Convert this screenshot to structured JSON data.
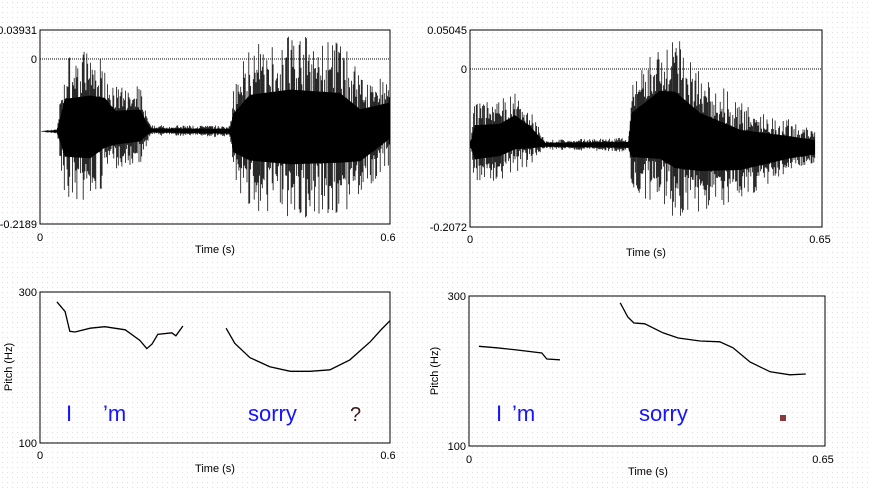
{
  "chart_data": [
    {
      "type": "line",
      "subtype": "waveform",
      "panel": "top-left",
      "xlabel": "Time (s)",
      "xlim": [
        0,
        0.6
      ],
      "ylim": [
        -0.2189,
        0.03931
      ],
      "x_ticks": [
        "0",
        "0.6"
      ],
      "y_ticks": [
        "0.03931",
        "0",
        "-0.2189"
      ],
      "envelope_t_max_min": [
        [
          0,
          -0.0955,
          -0.0955
        ],
        [
          0.029,
          -0.0916,
          -0.0995
        ],
        [
          0.043,
          0.0053,
          -0.187
        ],
        [
          0.086,
          0.0146,
          -0.194
        ],
        [
          0.111,
          -0.0013,
          -0.167
        ],
        [
          0.129,
          -0.0345,
          -0.147
        ],
        [
          0.171,
          -0.0345,
          -0.141
        ],
        [
          0.189,
          -0.0876,
          -0.101
        ],
        [
          0.326,
          -0.0876,
          -0.1035
        ],
        [
          0.331,
          -0.0345,
          -0.161
        ],
        [
          0.36,
          0.0186,
          -0.2
        ],
        [
          0.429,
          0.0345,
          -0.214
        ],
        [
          0.514,
          0.0252,
          -0.207
        ],
        [
          0.549,
          -0.0146,
          -0.187
        ],
        [
          0.6,
          -0.0212,
          -0.141
        ]
      ]
    },
    {
      "type": "line",
      "subtype": "waveform",
      "panel": "top-right",
      "xlabel": "Time (s)",
      "xlim": [
        0,
        0.65
      ],
      "ylim": [
        -0.2072,
        0.05045
      ],
      "x_ticks": [
        "0",
        "0.65"
      ],
      "y_ticks": [
        "0.05045",
        "0",
        "-0.2072"
      ],
      "envelope_t_max_min": [
        [
          0,
          -0.0997,
          -0.0997
        ],
        [
          0.009,
          -0.0407,
          -0.152
        ],
        [
          0.055,
          -0.0407,
          -0.146
        ],
        [
          0.083,
          -0.0275,
          -0.139
        ],
        [
          0.111,
          -0.0538,
          -0.126
        ],
        [
          0.138,
          -0.0931,
          -0.106
        ],
        [
          0.292,
          -0.0905,
          -0.109
        ],
        [
          0.299,
          -0.0144,
          -0.159
        ],
        [
          0.351,
          0.038,
          -0.185
        ],
        [
          0.379,
          0.0446,
          -0.205
        ],
        [
          0.425,
          -0.0013,
          -0.191
        ],
        [
          0.499,
          -0.0407,
          -0.172
        ],
        [
          0.591,
          -0.0669,
          -0.139
        ],
        [
          0.637,
          -0.08,
          -0.126
        ]
      ]
    },
    {
      "type": "line",
      "subtype": "pitch",
      "panel": "bottom-left",
      "xlabel": "Time (s)",
      "ylabel": "Pitch (Hz)",
      "xlim": [
        0,
        0.6
      ],
      "ylim": [
        100,
        300
      ],
      "x_ticks": [
        "0",
        "0.6"
      ],
      "y_ticks": [
        "300",
        "100"
      ],
      "segments": [
        {
          "t": [
            0.029,
            0.043,
            0.051,
            0.06,
            0.086,
            0.111,
            0.146,
            0.171,
            0.183,
            0.192,
            0.202,
            0.226,
            0.233,
            0.245
          ],
          "hz": [
            287,
            274,
            248,
            247,
            252,
            254,
            250,
            236,
            225,
            231,
            244,
            246,
            242,
            255
          ]
        },
        {
          "t": [
            0.319,
            0.334,
            0.36,
            0.394,
            0.429,
            0.463,
            0.497,
            0.531,
            0.566,
            0.586,
            0.6
          ],
          "hz": [
            252,
            232,
            213,
            201,
            195,
            195,
            197,
            210,
            234,
            251,
            262
          ]
        }
      ],
      "annotations": [
        "I",
        "’m",
        "sorry",
        "?"
      ]
    },
    {
      "type": "line",
      "subtype": "pitch",
      "panel": "bottom-right",
      "xlabel": "Time (s)",
      "ylabel": "Pitch (Hz)",
      "xlim": [
        0,
        0.65
      ],
      "ylim": [
        100,
        300
      ],
      "x_ticks": [
        "0",
        "0.65"
      ],
      "y_ticks": [
        "300",
        "100"
      ],
      "segments": [
        {
          "t": [
            0.018,
            0.051,
            0.088,
            0.133,
            0.142,
            0.166
          ],
          "hz": [
            233,
            231,
            228,
            224,
            216,
            215
          ]
        },
        {
          "t": [
            0.276,
            0.29,
            0.301,
            0.321,
            0.354,
            0.382,
            0.422,
            0.458,
            0.482,
            0.513,
            0.55,
            0.586,
            0.615
          ],
          "hz": [
            291,
            272,
            264,
            263,
            251,
            244,
            240,
            239,
            231,
            212,
            199,
            195,
            196
          ]
        }
      ],
      "annotations": [
        "I",
        "’m",
        "sorry"
      ]
    }
  ],
  "colors": {
    "annotation": "#1414ff",
    "question": "#3a1a1a",
    "marker": "#8a3a3a",
    "trace": "#000000"
  }
}
